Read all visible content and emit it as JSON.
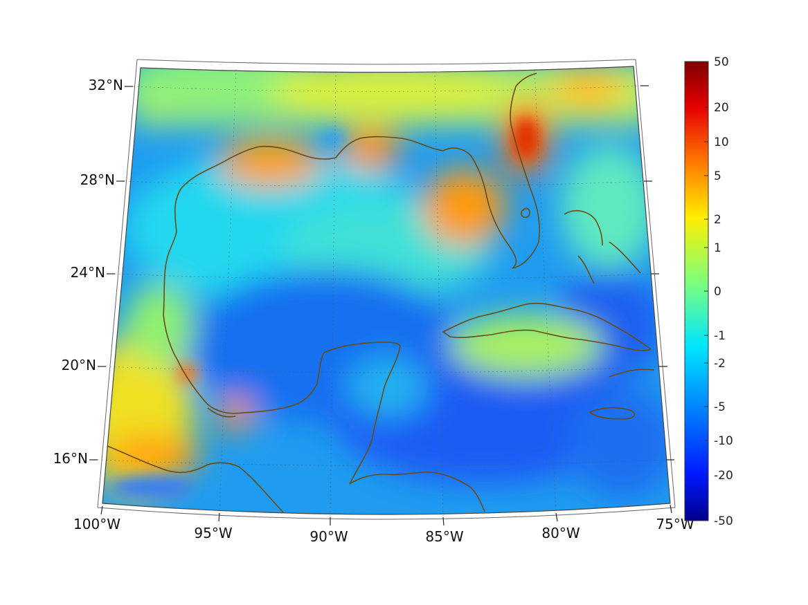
{
  "map": {
    "projection": "conic",
    "region": "Gulf of Mexico and Caribbean",
    "lon_labels": [
      "100°W",
      "95°W",
      "90°W",
      "85°W",
      "80°W",
      "75°W"
    ],
    "lat_labels": [
      "32°N",
      "28°N",
      "24°N",
      "20°N",
      "16°N"
    ],
    "coastline_color": "#6b4a12",
    "field_palette": "jet"
  },
  "colorbar": {
    "ticks": [
      "50",
      "20",
      "10",
      "5",
      "2",
      "1",
      "0",
      "-1",
      "-2",
      "-5",
      "-10",
      "-20",
      "-50"
    ],
    "min": -50,
    "max": 50,
    "scale": "symmetric-log"
  }
}
